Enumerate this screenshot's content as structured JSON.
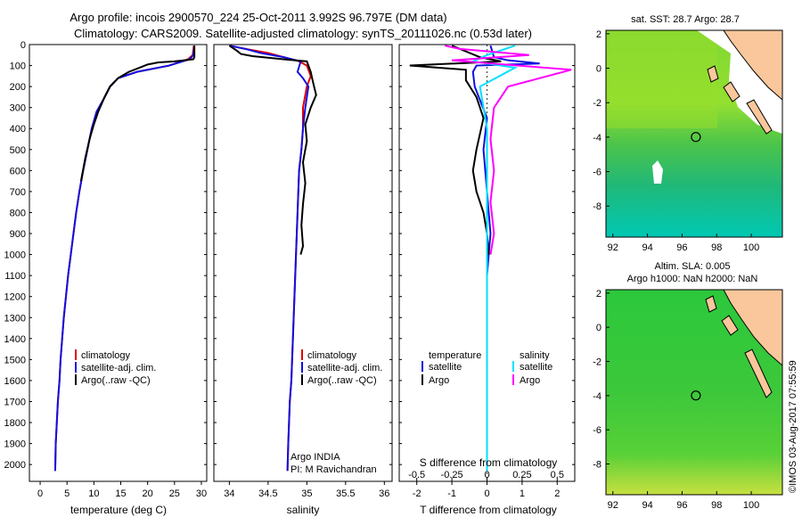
{
  "header": {
    "title_line1": "Argo profile: incois 2900570_224 25-Oct-2011 3.992S 96.797E (DM data)",
    "title_line2": "Climatology: CARS2009. Satellite-adjusted climatology: synTS_20111026.nc (0.53d later)"
  },
  "colors": {
    "climatology": "#e00000",
    "satellite": "#1010e0",
    "argo": "#000000",
    "satellite_salinity": "#00e0ff",
    "argo_salinity": "#ff00ff",
    "land": "#f9c79b",
    "coast": "#000000"
  },
  "chart_data": [
    {
      "id": "temp",
      "type": "line",
      "xlabel": "temperature (deg C)",
      "ylabel": "",
      "xlim": [
        -2,
        31
      ],
      "ylim": [
        2080,
        0
      ],
      "xticks": [
        0,
        5,
        10,
        15,
        20,
        25,
        30
      ],
      "xtick_labels": [
        "0",
        "5",
        "10",
        "15",
        "20",
        "25",
        "30"
      ],
      "yticks": [
        0,
        100,
        200,
        300,
        400,
        500,
        600,
        700,
        800,
        900,
        1000,
        1100,
        1200,
        1300,
        1400,
        1500,
        1600,
        1700,
        1800,
        1900,
        2000
      ],
      "ytick_labels": [
        "0",
        "100",
        "200",
        "300",
        "400",
        "500",
        "600",
        "700",
        "800",
        "900",
        "1000",
        "1100",
        "1200",
        "1300",
        "1400",
        "1500",
        "1600",
        "1700",
        "1800",
        "1900",
        "2000"
      ],
      "legend": [
        "climatology",
        "satellite-adj. clim.",
        "Argo(..raw -QC)"
      ],
      "series": [
        {
          "name": "climatology",
          "color": "#e00000",
          "x": [
            28.6,
            28.4,
            27.5,
            24.0,
            18.0,
            14.5,
            13.0,
            11.8,
            10.5,
            9.6,
            8.8,
            8.0,
            7.3,
            6.7,
            6.2,
            5.7,
            5.2,
            4.8,
            4.4,
            4.1,
            3.8,
            3.6,
            3.3,
            3.1,
            2.9,
            2.8
          ],
          "y": [
            5,
            50,
            70,
            100,
            130,
            160,
            200,
            260,
            320,
            400,
            500,
            600,
            700,
            800,
            900,
            1000,
            1100,
            1200,
            1300,
            1400,
            1500,
            1600,
            1700,
            1800,
            1900,
            2030
          ]
        },
        {
          "name": "satellite-adj. clim.",
          "color": "#1010e0",
          "x": [
            28.7,
            28.5,
            27.8,
            24.0,
            18.0,
            14.5,
            13.0,
            11.8,
            10.5,
            9.6,
            8.8,
            8.0,
            7.3,
            6.7,
            6.2,
            5.7,
            5.2,
            4.8,
            4.4,
            4.1,
            3.8,
            3.6,
            3.3,
            3.1,
            2.9,
            2.8
          ],
          "y": [
            5,
            50,
            70,
            100,
            130,
            160,
            200,
            260,
            320,
            400,
            500,
            600,
            700,
            800,
            900,
            1000,
            1100,
            1200,
            1300,
            1400,
            1500,
            1600,
            1700,
            1800,
            1900,
            2030
          ]
        },
        {
          "name": "Argo(..raw -QC)",
          "color": "#000000",
          "x": [
            28.7,
            28.7,
            28.5,
            25.0,
            22.0,
            20.0,
            18.5,
            16.5,
            14.5,
            13.0,
            12.0,
            10.8,
            10.0,
            9.2,
            8.4,
            7.6
          ],
          "y": [
            5,
            60,
            70,
            80,
            85,
            95,
            110,
            130,
            160,
            200,
            250,
            320,
            380,
            450,
            540,
            650
          ]
        }
      ]
    },
    {
      "id": "sal",
      "type": "line",
      "xlabel": "salinity",
      "ylabel": "",
      "xlim": [
        33.8,
        36.1
      ],
      "ylim": [
        2080,
        0
      ],
      "xticks": [
        34,
        34.5,
        35,
        35.5,
        36
      ],
      "xtick_labels": [
        "34",
        "34.5",
        "35",
        "35.5",
        "36"
      ],
      "legend": [
        "climatology",
        "satellite-adj. clim.",
        "Argo(..raw -QC)"
      ],
      "annotation": [
        "Argo INDIA",
        "PI: M Ravichandran"
      ],
      "series": [
        {
          "name": "climatology",
          "color": "#e00000",
          "x": [
            34.0,
            34.2,
            34.5,
            34.7,
            34.9,
            35.0,
            35.05,
            35.0,
            34.95,
            34.95,
            34.93,
            34.9,
            34.88,
            34.86,
            34.84,
            34.82,
            34.8,
            34.78,
            34.77,
            34.76,
            34.75
          ],
          "y": [
            5,
            20,
            40,
            60,
            80,
            100,
            150,
            200,
            300,
            400,
            500,
            600,
            800,
            1000,
            1200,
            1400,
            1600,
            1700,
            1800,
            1900,
            2030
          ]
        },
        {
          "name": "satellite-adj. clim.",
          "color": "#1010e0",
          "x": [
            34.0,
            34.2,
            34.4,
            34.7,
            34.92,
            34.88,
            34.95,
            35.02,
            34.98,
            34.95,
            34.93,
            34.9,
            34.88,
            34.86,
            34.84,
            34.82,
            34.8,
            34.78,
            34.77,
            34.76,
            34.75
          ],
          "y": [
            5,
            20,
            40,
            60,
            80,
            130,
            160,
            200,
            300,
            400,
            500,
            600,
            800,
            1000,
            1200,
            1400,
            1600,
            1700,
            1800,
            1900,
            2030
          ]
        },
        {
          "name": "Argo(..raw -QC)",
          "color": "#000000",
          "x": [
            34.0,
            34.1,
            34.15,
            34.3,
            34.7,
            35.0,
            35.05,
            35.08,
            35.12,
            35.05,
            34.98,
            35.0,
            34.95,
            34.98,
            34.95,
            34.93,
            34.95,
            34.92
          ],
          "y": [
            5,
            30,
            45,
            55,
            70,
            80,
            130,
            180,
            240,
            300,
            380,
            460,
            560,
            660,
            760,
            860,
            960,
            1000
          ]
        }
      ]
    },
    {
      "id": "diff",
      "type": "line",
      "xlabel": "T difference from climatology",
      "xlabel2": "S difference from climatology",
      "xlim": [
        -2.5,
        2.5
      ],
      "ylim": [
        2080,
        0
      ],
      "xticks": [
        -2,
        -1,
        0,
        1,
        2
      ],
      "xtick_labels": [
        "-2",
        "-1",
        "0",
        "1",
        "2"
      ],
      "xticks_s": [
        -0.5,
        -0.25,
        0,
        0.25,
        0.5
      ],
      "xtick_labels_s": [
        "-0.5",
        "-0.25",
        "0",
        "0.25",
        "0.5"
      ],
      "legend_temp_title": "temperature",
      "legend_sal_title": "salinity",
      "legend_temp": [
        "satellite",
        "Argo"
      ],
      "legend_sal": [
        "satellite",
        "Argo"
      ],
      "series": [
        {
          "name": "satellite",
          "group": "temperature",
          "color": "#1010e0",
          "x": [
            0.1,
            0.2,
            0.6,
            1.5,
            -0.3,
            -0.4,
            -0.35,
            0.0,
            -0.1,
            0.0,
            0.1,
            0.0,
            0.0,
            0.0,
            0.0,
            0.0
          ],
          "y": [
            5,
            60,
            75,
            90,
            100,
            130,
            200,
            350,
            500,
            700,
            900,
            1100,
            1400,
            1600,
            1800,
            2030
          ]
        },
        {
          "name": "Argo",
          "group": "temperature",
          "color": "#000000",
          "x": [
            -1.0,
            -0.2,
            0.4,
            -2.2,
            -0.6,
            -0.6,
            -0.3,
            -0.1,
            -0.3,
            -0.4,
            -0.3,
            -0.1,
            0.0,
            0.05
          ],
          "y": [
            5,
            60,
            80,
            100,
            120,
            170,
            250,
            350,
            500,
            600,
            700,
            800,
            900,
            1000
          ]
        },
        {
          "name": "satellite",
          "group": "salinity",
          "color": "#00e0ff",
          "x": [
            0.4,
            0.0,
            -0.2,
            0.4,
            -0.1,
            0.0,
            0.0,
            0.0,
            0.0,
            0.0
          ],
          "y": [
            5,
            50,
            80,
            110,
            200,
            400,
            800,
            1200,
            1600,
            2030
          ]
        },
        {
          "name": "Argo",
          "group": "salinity",
          "color": "#ff00ff",
          "x": [
            -0.6,
            -0.4,
            0.6,
            -0.5,
            1.2,
            0.3,
            0.1,
            0.05,
            0.1,
            0.05,
            0.1,
            0.05
          ],
          "y": [
            5,
            20,
            50,
            75,
            120,
            200,
            300,
            450,
            600,
            750,
            900,
            1000
          ]
        }
      ]
    }
  ],
  "maps": {
    "sst": {
      "title": "sat. SST: 28.7 Argo: 28.7",
      "xticks": [
        "92",
        "94",
        "96",
        "98",
        "100"
      ],
      "yticks": [
        "2",
        "0",
        "-2",
        "-4",
        "-6",
        "-8"
      ],
      "marker_lon": 96.797,
      "marker_lat": -3.992
    },
    "sla": {
      "title_line1": "Altim. SLA: 0.005",
      "title_line2": "Argo h1000: NaN h2000: NaN",
      "xticks": [
        "92",
        "94",
        "96",
        "98",
        "100"
      ],
      "yticks": [
        "2",
        "0",
        "-2",
        "-4",
        "-6",
        "-8"
      ],
      "marker_lon": 96.797,
      "marker_lat": -3.992
    },
    "credit": "©IMOS 03-Aug-2017 07:55:59"
  }
}
